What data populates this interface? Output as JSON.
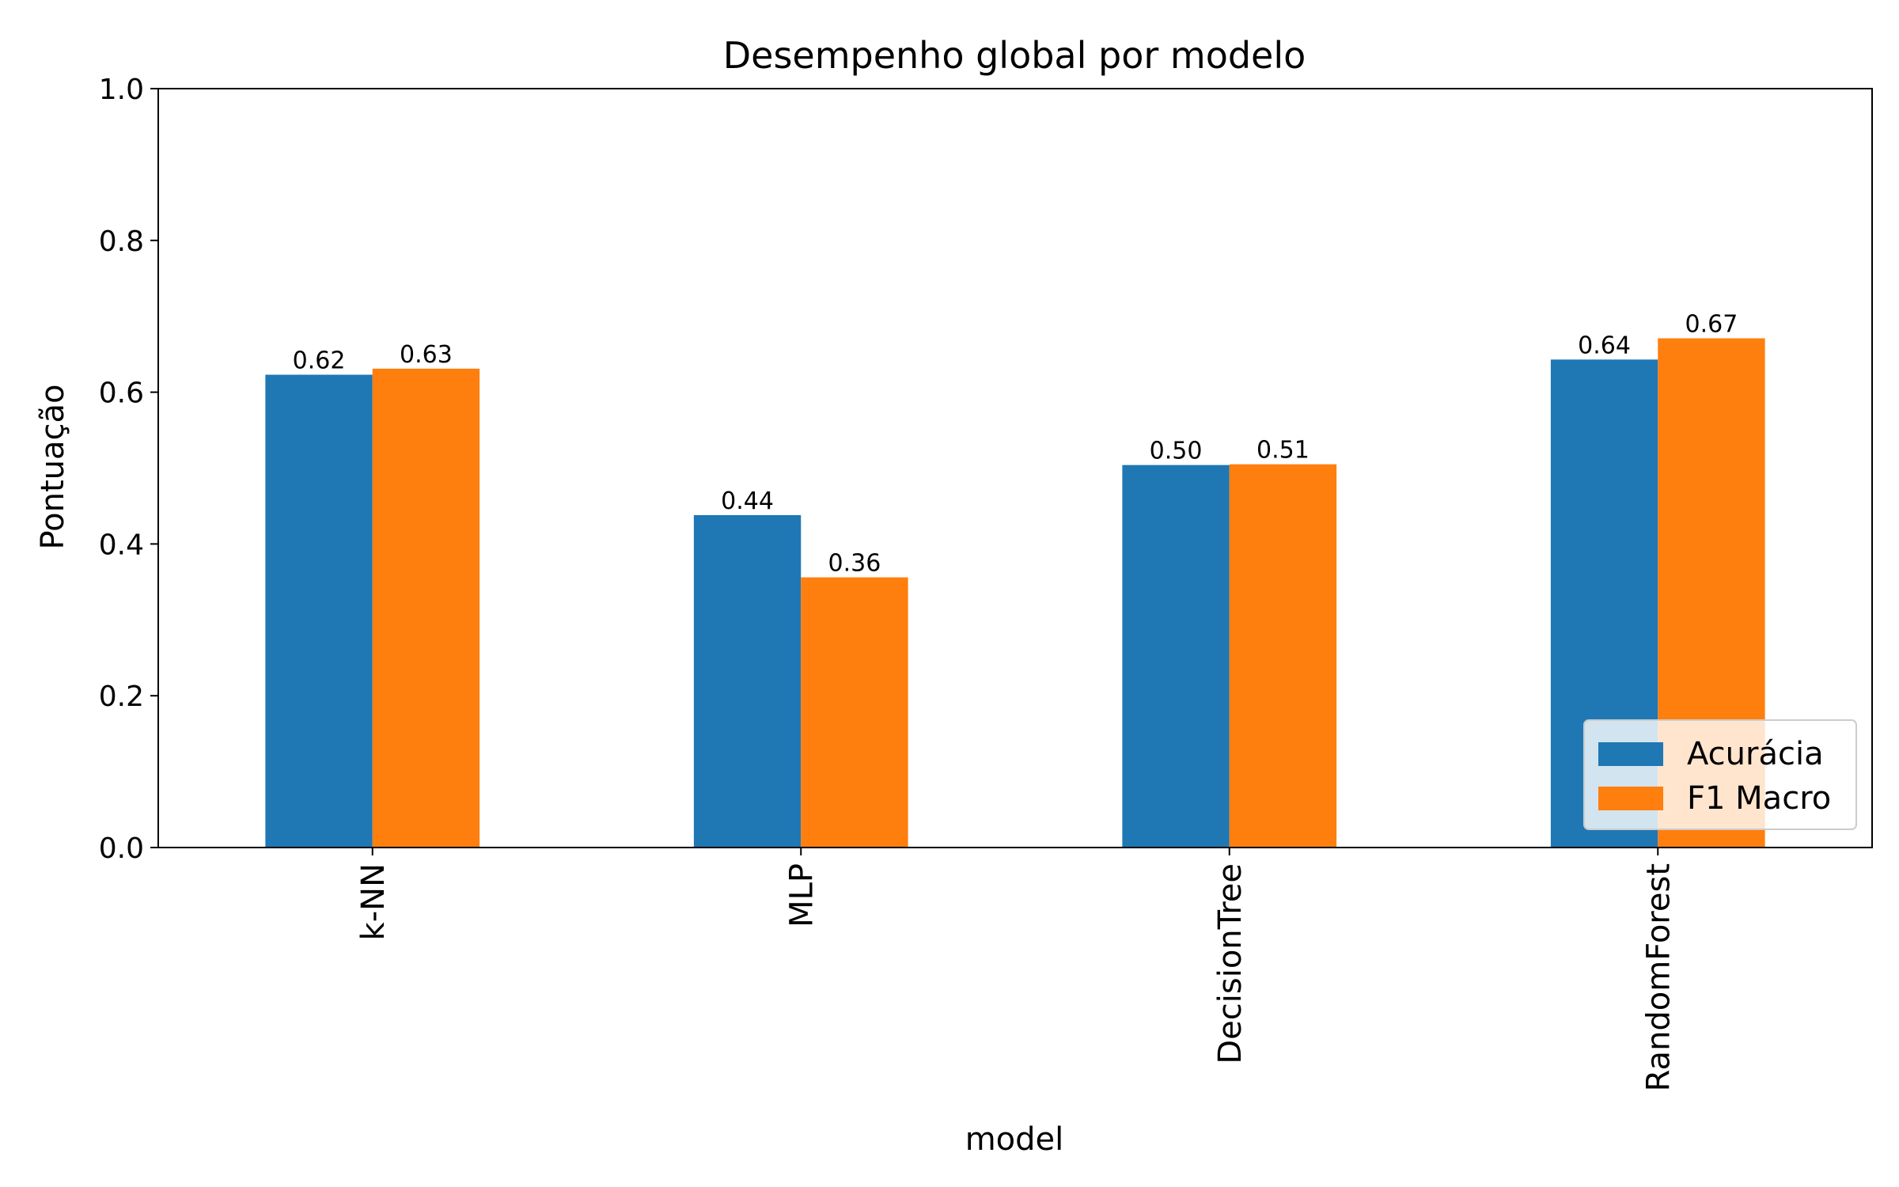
{
  "chart_data": {
    "type": "bar",
    "title": "Desempenho global por modelo",
    "xlabel": "model",
    "ylabel": "Pontuação",
    "ylim": [
      0,
      1.0
    ],
    "yticks": [
      "0.0",
      "0.2",
      "0.4",
      "0.6",
      "0.8",
      "1.0"
    ],
    "categories": [
      "k-NN",
      "MLP",
      "DecisionTree",
      "RandomForest"
    ],
    "series": [
      {
        "name": "Acurácia",
        "color": "#1f77b4",
        "values": [
          0.623,
          0.438,
          0.504,
          0.643
        ],
        "labels": [
          "0.62",
          "0.44",
          "0.50",
          "0.64"
        ]
      },
      {
        "name": "F1 Macro",
        "color": "#ff7f0e",
        "values": [
          0.631,
          0.356,
          0.505,
          0.671
        ],
        "labels": [
          "0.63",
          "0.36",
          "0.51",
          "0.67"
        ]
      }
    ],
    "legend_position": "lower-right",
    "grid": false
  }
}
